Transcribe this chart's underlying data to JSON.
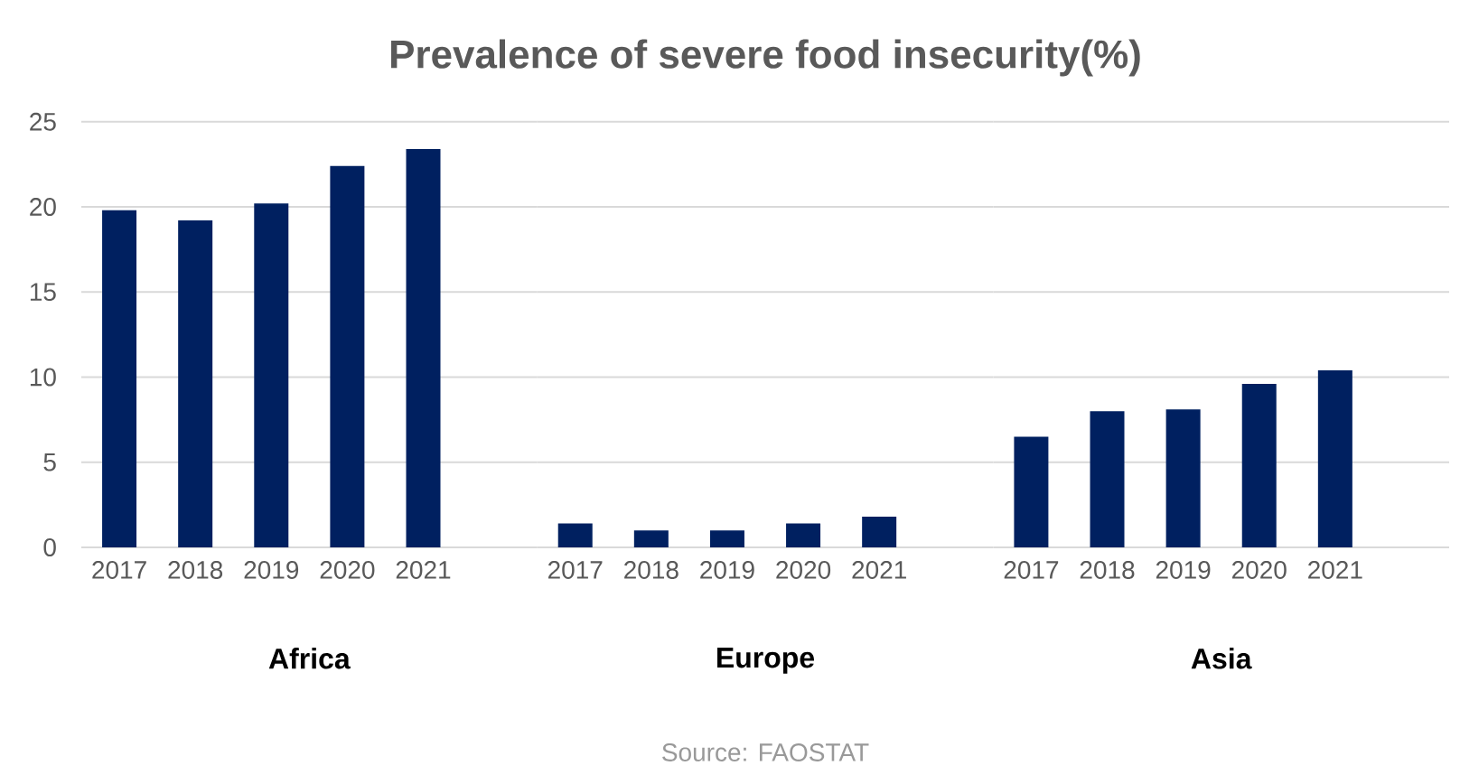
{
  "chart_data": [
    {
      "type": "bar",
      "xlabel": "Africa",
      "categories": [
        "2017",
        "2018",
        "2019",
        "2020",
        "2021"
      ],
      "values": [
        19.8,
        19.2,
        20.2,
        22.4,
        23.4
      ],
      "color": "#002060",
      "ylim": [
        0,
        25
      ],
      "yticks": [
        0,
        5,
        10,
        15,
        20,
        25
      ],
      "grid": "y"
    },
    {
      "type": "bar",
      "title": "Prevalence of severe food insecurity(%)",
      "xlabel": "Europe",
      "categories": [
        "2017",
        "2018",
        "2019",
        "2020",
        "2021"
      ],
      "values": [
        1.4,
        1.0,
        1.0,
        1.4,
        1.8
      ],
      "color": "#002060",
      "ylim": [
        0,
        25
      ],
      "yticks": [
        0,
        5,
        10,
        15,
        20,
        25
      ],
      "grid": "y",
      "tick_labels": "x",
      "annotations": [
        "Source: FAOSTAT"
      ]
    },
    {
      "type": "bar",
      "xlabel": "Asia",
      "categories": [
        "2017",
        "2018",
        "2019",
        "2020",
        "2021"
      ],
      "values": [
        6.5,
        8.0,
        8.1,
        9.6,
        10.4
      ],
      "color": "#002060",
      "ylim": [
        0,
        25
      ],
      "yticks": [
        0,
        5,
        10,
        15,
        20,
        25
      ],
      "grid": "y",
      "tick_labels": "x"
    }
  ]
}
